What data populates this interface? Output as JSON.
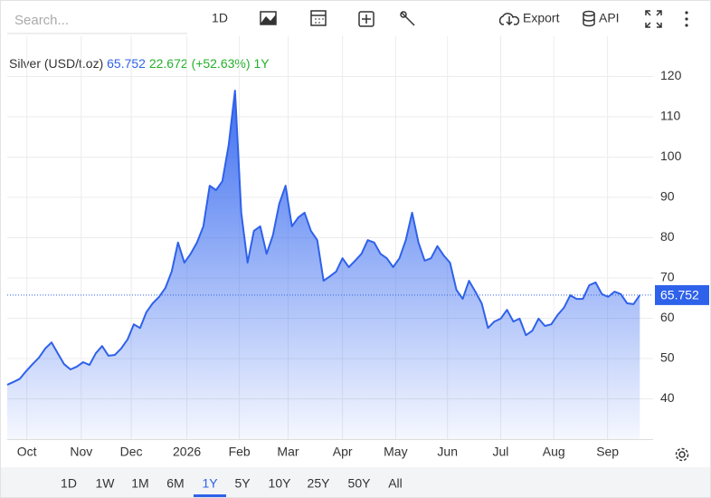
{
  "toolbar": {
    "search_placeholder": "Search...",
    "interval": "1D",
    "export": "Export",
    "api": "API"
  },
  "chart_data": {
    "type": "area",
    "title": "Silver (USD/t.oz)",
    "change": 22.672,
    "change_percent_label": "(+52.63%)",
    "period": "1Y",
    "series": [
      {
        "name": "Silver",
        "color": "#2f62ea",
        "values": [
          43.5,
          44.2,
          45,
          46.9,
          48.6,
          50.2,
          52.5,
          54,
          51.3,
          48.6,
          47.3,
          48,
          49.1,
          48.4,
          51.3,
          53.1,
          50.7,
          50.9,
          52.5,
          54.7,
          58.5,
          57.6,
          61.5,
          63.7,
          65.3,
          67.5,
          71.6,
          78.8,
          73.8,
          76,
          78.8,
          82.8,
          92.9,
          91.8,
          94,
          103,
          116.5,
          86.2,
          73.8,
          81.7,
          82.8,
          76,
          80.6,
          88.4,
          92.9,
          82.8,
          85,
          86.2,
          81.7,
          79.4,
          69.3,
          70.4,
          71.6,
          74.9,
          72.7,
          74.3,
          76,
          79.4,
          78.8,
          76,
          74.9,
          72.7,
          74.9,
          79.4,
          86.2,
          78.8,
          74.3,
          74.9,
          77.9,
          75.6,
          73.8,
          67.1,
          64.8,
          69.3,
          66.6,
          63.7,
          57.6,
          59.2,
          59.9,
          62.1,
          59.2,
          59.9,
          55.8,
          56.9,
          59.9,
          58.1,
          58.5,
          60.8,
          62.6,
          65.7,
          64.8,
          64.8,
          68.2,
          68.9,
          66,
          65.3,
          66.6,
          66,
          63.7,
          63.5,
          65.752
        ]
      }
    ],
    "xlim": [
      0,
      102.1
    ],
    "xticks": [
      {
        "value": 3.1,
        "label": "Oct"
      },
      {
        "value": 11.7,
        "label": "Nov"
      },
      {
        "value": 19.6,
        "label": "Dec"
      },
      {
        "value": 28.4,
        "label": "2026"
      },
      {
        "value": 36.7,
        "label": "Feb"
      },
      {
        "value": 44.4,
        "label": "Mar"
      },
      {
        "value": 53,
        "label": "Apr"
      },
      {
        "value": 61.4,
        "label": "May"
      },
      {
        "value": 69.6,
        "label": "Jun"
      },
      {
        "value": 78,
        "label": "Jul"
      },
      {
        "value": 86.4,
        "label": "Aug"
      },
      {
        "value": 94.9,
        "label": "Sep"
      }
    ],
    "ylim": [
      30,
      130
    ],
    "yticks": [
      40,
      50,
      60,
      70,
      80,
      90,
      100,
      110,
      120
    ],
    "grid": true
  },
  "range_buttons": [
    "1D",
    "1W",
    "1M",
    "6M",
    "1Y",
    "5Y",
    "10Y",
    "25Y",
    "50Y",
    "All"
  ],
  "selected_range": 4
}
